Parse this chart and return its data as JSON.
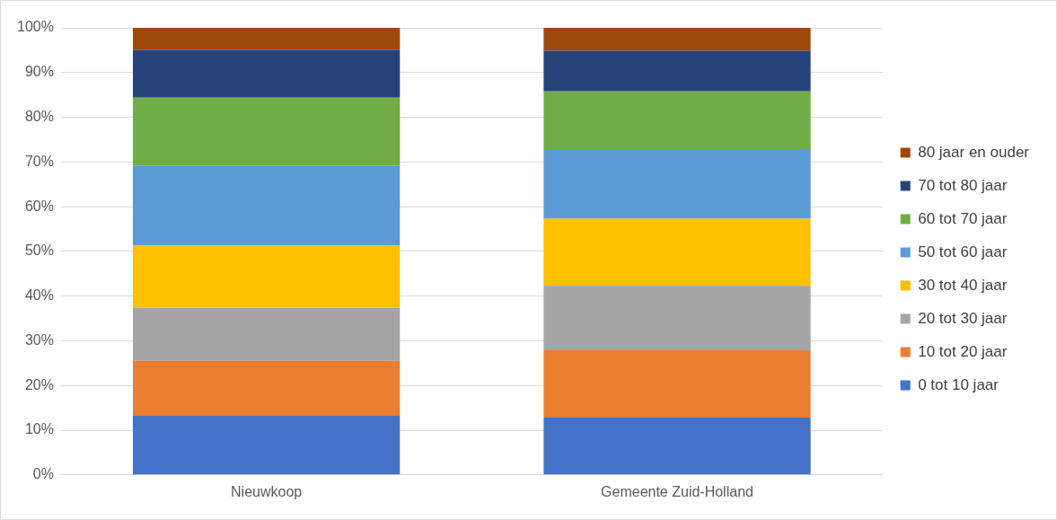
{
  "chart_data": {
    "type": "bar",
    "stacked": true,
    "categories": [
      "Nieuwkoop",
      "Gemeente Zuid-Holland"
    ],
    "series": [
      {
        "name": "0 tot 10 jaar",
        "color": "#4472c4",
        "values": [
          13.2,
          12.8
        ]
      },
      {
        "name": "10 tot 20 jaar",
        "color": "#ed7d31",
        "values": [
          12.3,
          15.1
        ]
      },
      {
        "name": "20 tot 30 jaar",
        "color": "#a5a5a5",
        "values": [
          11.9,
          14.4
        ]
      },
      {
        "name": "30 tot 40 jaar",
        "color": "#ffc000",
        "values": [
          14.0,
          15.0
        ]
      },
      {
        "name": "50 tot 60 jaar",
        "color": "#5b9bd5",
        "values": [
          17.8,
          15.6
        ]
      },
      {
        "name": "60 tot 70 jaar",
        "color": "#70ad47",
        "values": [
          15.2,
          12.9
        ]
      },
      {
        "name": "70 tot 80 jaar",
        "color": "#264478",
        "values": [
          10.7,
          9.1
        ]
      },
      {
        "name": "80 jaar en ouder",
        "color": "#9e480e",
        "values": [
          4.9,
          5.1
        ]
      }
    ],
    "ylim": [
      0,
      100
    ],
    "yticks": [
      {
        "value": 0,
        "label": "0%"
      },
      {
        "value": 10,
        "label": "10%"
      },
      {
        "value": 20,
        "label": "20%"
      },
      {
        "value": 30,
        "label": "30%"
      },
      {
        "value": 40,
        "label": "40%"
      },
      {
        "value": 50,
        "label": "50%"
      },
      {
        "value": 60,
        "label": "60%"
      },
      {
        "value": 70,
        "label": "70%"
      },
      {
        "value": 80,
        "label": "80%"
      },
      {
        "value": 90,
        "label": "90%"
      },
      {
        "value": 100,
        "label": "100%"
      }
    ],
    "grid": "y",
    "legend": "right"
  }
}
